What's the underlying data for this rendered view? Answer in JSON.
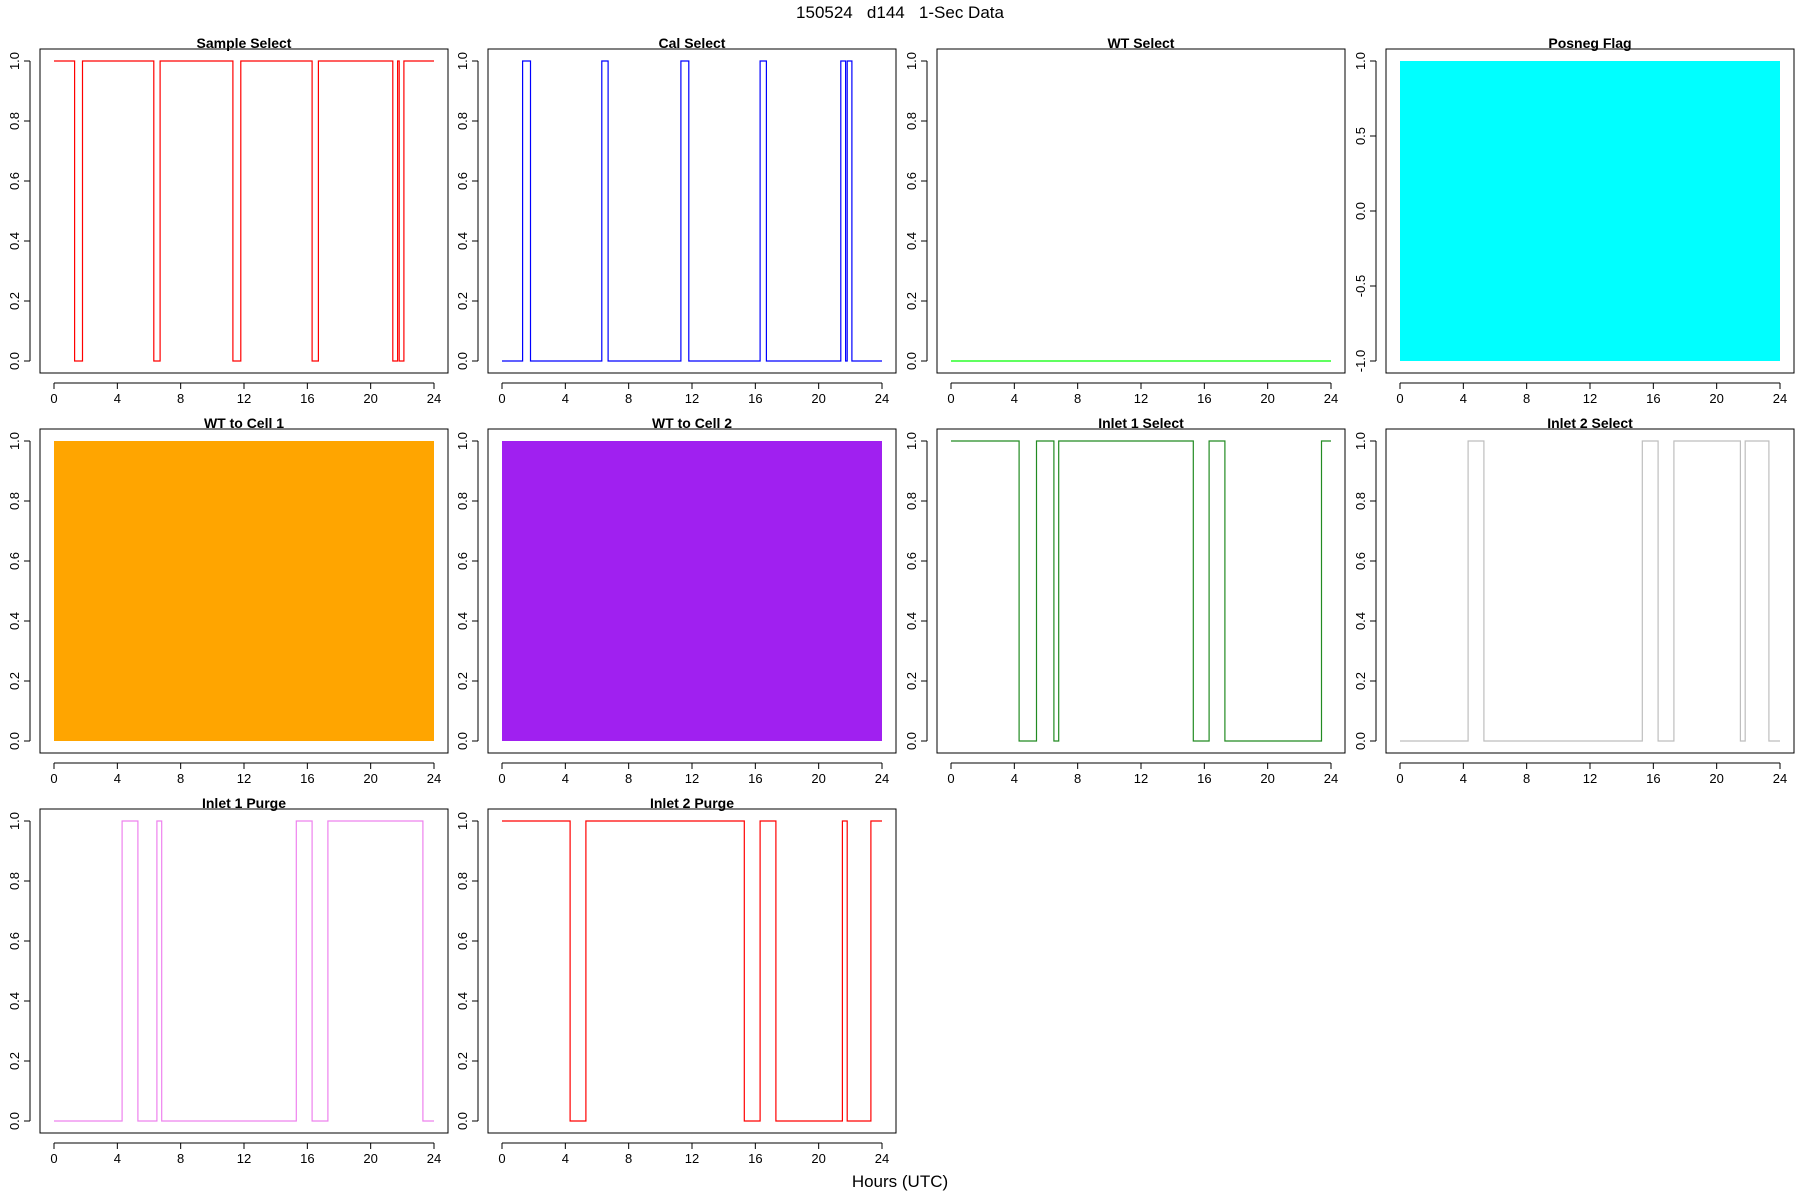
{
  "figure": {
    "title": "150524   d144   1-Sec Data",
    "xlabel": "Hours (UTC)"
  },
  "chart_data": [
    {
      "type": "line",
      "title": "Sample Select",
      "color": "#FF0000",
      "fill": false,
      "xlim": [
        0,
        24
      ],
      "ylim": [
        0,
        1
      ],
      "xticks": [
        0,
        4,
        8,
        12,
        16,
        20,
        24
      ],
      "yticks": [
        "0.0",
        "0.2",
        "0.4",
        "0.6",
        "0.8",
        "1.0"
      ],
      "x": [
        0,
        1.3,
        1.3,
        1.8,
        1.8,
        6.3,
        6.3,
        6.7,
        6.7,
        11.3,
        11.3,
        11.8,
        11.8,
        16.3,
        16.3,
        16.7,
        16.7,
        21.4,
        21.4,
        21.7,
        21.7,
        21.8,
        21.8,
        22.1,
        22.1,
        24
      ],
      "y": [
        1,
        1,
        0,
        0,
        1,
        1,
        0,
        0,
        1,
        1,
        0,
        0,
        1,
        1,
        0,
        0,
        1,
        1,
        0,
        0,
        1,
        1,
        0,
        0,
        1,
        1
      ]
    },
    {
      "type": "line",
      "title": "Cal Select",
      "color": "#0000FF",
      "fill": false,
      "xlim": [
        0,
        24
      ],
      "ylim": [
        0,
        1
      ],
      "xticks": [
        0,
        4,
        8,
        12,
        16,
        20,
        24
      ],
      "yticks": [
        "0.0",
        "0.2",
        "0.4",
        "0.6",
        "0.8",
        "1.0"
      ],
      "x": [
        0,
        1.3,
        1.3,
        1.8,
        1.8,
        6.3,
        6.3,
        6.7,
        6.7,
        11.3,
        11.3,
        11.8,
        11.8,
        16.3,
        16.3,
        16.7,
        16.7,
        21.4,
        21.4,
        21.7,
        21.7,
        21.8,
        21.8,
        22.1,
        22.1,
        24
      ],
      "y": [
        0,
        0,
        1,
        1,
        0,
        0,
        1,
        1,
        0,
        0,
        1,
        1,
        0,
        0,
        1,
        1,
        0,
        0,
        1,
        1,
        0,
        0,
        1,
        1,
        0,
        0
      ]
    },
    {
      "type": "line",
      "title": "WT Select",
      "color": "#00FF00",
      "fill": false,
      "xlim": [
        0,
        24
      ],
      "ylim": [
        0,
        1
      ],
      "xticks": [
        0,
        4,
        8,
        12,
        16,
        20,
        24
      ],
      "yticks": [
        "0.0",
        "0.2",
        "0.4",
        "0.6",
        "0.8",
        "1.0"
      ],
      "x": [
        0,
        24
      ],
      "y": [
        0,
        0
      ]
    },
    {
      "type": "area",
      "title": "Posneg Flag",
      "color": "#00FFFF",
      "fill": true,
      "xlim": [
        0,
        24
      ],
      "ylim": [
        -1,
        1
      ],
      "xticks": [
        0,
        4,
        8,
        12,
        16,
        20,
        24
      ],
      "yticks": [
        "-1.0",
        "-0.5",
        "0.0",
        "0.5",
        "1.0"
      ],
      "x": [
        0,
        24
      ],
      "y_min": -1,
      "y_max": 1
    },
    {
      "type": "area",
      "title": "WT to Cell 1",
      "color": "#FFA500",
      "fill": true,
      "xlim": [
        0,
        24
      ],
      "ylim": [
        0,
        1
      ],
      "xticks": [
        0,
        4,
        8,
        12,
        16,
        20,
        24
      ],
      "yticks": [
        "0.0",
        "0.2",
        "0.4",
        "0.6",
        "0.8",
        "1.0"
      ],
      "x": [
        0,
        24
      ],
      "y_min": 0,
      "y_max": 1
    },
    {
      "type": "area",
      "title": "WT to Cell 2",
      "color": "#A020F0",
      "fill": true,
      "xlim": [
        0,
        24
      ],
      "ylim": [
        0,
        1
      ],
      "xticks": [
        0,
        4,
        8,
        12,
        16,
        20,
        24
      ],
      "yticks": [
        "0.0",
        "0.2",
        "0.4",
        "0.6",
        "0.8",
        "1.0"
      ],
      "x": [
        0,
        24
      ],
      "y_min": 0,
      "y_max": 1
    },
    {
      "type": "line",
      "title": "Inlet 1 Select",
      "color": "#228B22",
      "fill": false,
      "xlim": [
        0,
        24
      ],
      "ylim": [
        0,
        1
      ],
      "xticks": [
        0,
        4,
        8,
        12,
        16,
        20,
        24
      ],
      "yticks": [
        "0.0",
        "0.2",
        "0.4",
        "0.6",
        "0.8",
        "1.0"
      ],
      "x": [
        0,
        4.3,
        4.3,
        5.4,
        5.4,
        6.5,
        6.5,
        6.8,
        6.8,
        15.3,
        15.3,
        16.3,
        16.3,
        17.3,
        17.3,
        23.4,
        23.4,
        24
      ],
      "y": [
        1,
        1,
        0,
        0,
        1,
        1,
        0,
        0,
        1,
        1,
        0,
        0,
        1,
        1,
        0,
        0,
        1,
        1
      ]
    },
    {
      "type": "line",
      "title": "Inlet 2 Select",
      "color": "#BEBEBE",
      "fill": false,
      "xlim": [
        0,
        24
      ],
      "ylim": [
        0,
        1
      ],
      "xticks": [
        0,
        4,
        8,
        12,
        16,
        20,
        24
      ],
      "yticks": [
        "0.0",
        "0.2",
        "0.4",
        "0.6",
        "0.8",
        "1.0"
      ],
      "x": [
        0,
        4.3,
        4.3,
        5.3,
        5.3,
        15.3,
        15.3,
        16.3,
        16.3,
        17.3,
        17.3,
        21.5,
        21.5,
        21.8,
        21.8,
        23.3,
        23.3,
        24
      ],
      "y": [
        0,
        0,
        1,
        1,
        0,
        0,
        1,
        1,
        0,
        0,
        1,
        1,
        0,
        0,
        1,
        1,
        0,
        0
      ]
    },
    {
      "type": "line",
      "title": "Inlet 1 Purge",
      "color": "#EE82EE",
      "fill": false,
      "xlim": [
        0,
        24
      ],
      "ylim": [
        0,
        1
      ],
      "xticks": [
        0,
        4,
        8,
        12,
        16,
        20,
        24
      ],
      "yticks": [
        "0.0",
        "0.2",
        "0.4",
        "0.6",
        "0.8",
        "1.0"
      ],
      "x": [
        0,
        4.3,
        4.3,
        5.3,
        5.3,
        6.5,
        6.5,
        6.8,
        6.8,
        15.3,
        15.3,
        16.3,
        16.3,
        17.3,
        17.3,
        23.3,
        23.3,
        24
      ],
      "y": [
        0,
        0,
        1,
        1,
        0,
        0,
        1,
        1,
        0,
        0,
        1,
        1,
        0,
        0,
        1,
        1,
        0,
        0
      ]
    },
    {
      "type": "line",
      "title": "Inlet 2 Purge",
      "color": "#FF0000",
      "fill": false,
      "xlim": [
        0,
        24
      ],
      "ylim": [
        0,
        1
      ],
      "xticks": [
        0,
        4,
        8,
        12,
        16,
        20,
        24
      ],
      "yticks": [
        "0.0",
        "0.2",
        "0.4",
        "0.6",
        "0.8",
        "1.0"
      ],
      "x": [
        0,
        4.3,
        4.3,
        5.3,
        5.3,
        15.3,
        15.3,
        16.3,
        16.3,
        17.3,
        17.3,
        21.5,
        21.5,
        21.8,
        21.8,
        23.3,
        23.3,
        24
      ],
      "y": [
        1,
        1,
        0,
        0,
        1,
        1,
        0,
        0,
        1,
        1,
        0,
        0,
        1,
        1,
        0,
        0,
        1,
        1
      ]
    }
  ]
}
